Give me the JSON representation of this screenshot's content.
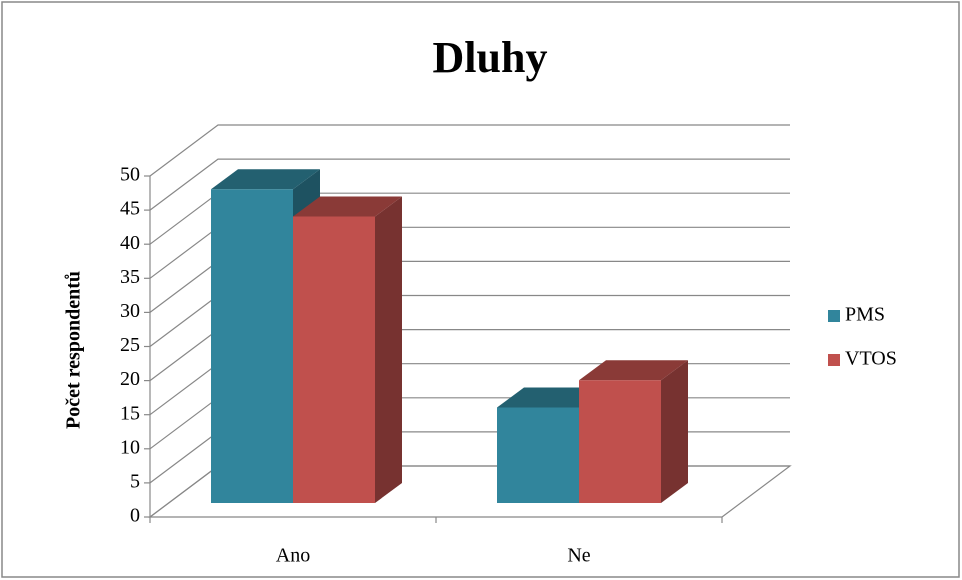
{
  "chart_data": {
    "type": "bar",
    "title": "Dluhy",
    "y_label": "Počet respondentů",
    "categories": [
      "Ano",
      "Ne"
    ],
    "series": [
      {
        "name": "PMS",
        "color": "#31859c",
        "values": [
          46,
          14
        ]
      },
      {
        "name": "VTOS",
        "color": "#c0504d",
        "values": [
          42,
          18
        ]
      }
    ],
    "ylim": [
      0,
      50
    ],
    "yticks": [
      0,
      5,
      10,
      15,
      20,
      25,
      30,
      35,
      40,
      45,
      50
    ],
    "grid": true,
    "legend": "right"
  }
}
